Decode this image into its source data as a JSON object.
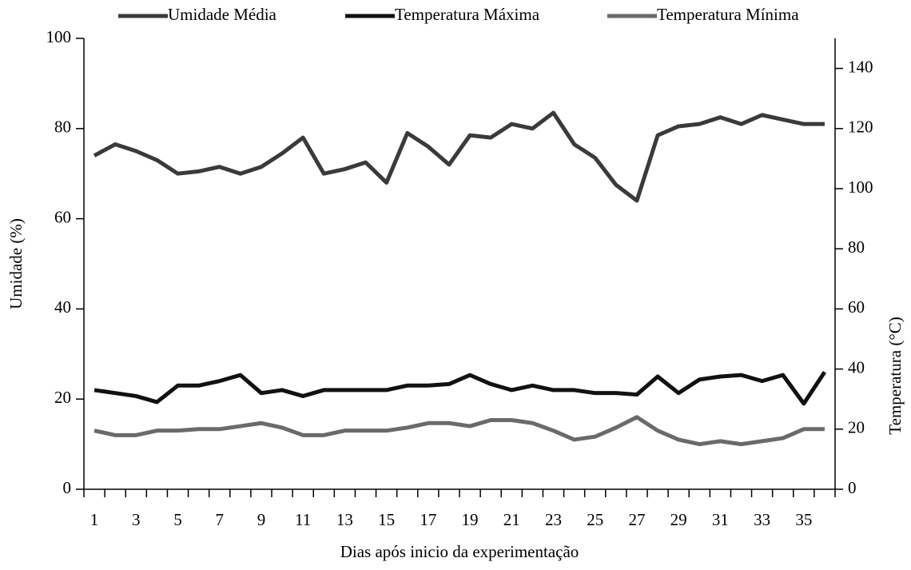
{
  "chart_data": {
    "type": "line",
    "xlabel": "Dias após inicio da experimentação",
    "ylabel": "Umidade (%)",
    "y2label": "Temperatura (°C)",
    "categories": [
      1,
      null,
      3,
      null,
      5,
      null,
      7,
      null,
      9,
      null,
      11,
      null,
      13,
      null,
      15,
      null,
      17,
      null,
      19,
      null,
      21,
      null,
      23,
      null,
      25,
      null,
      27,
      null,
      29,
      null,
      31,
      null,
      33,
      null,
      35,
      null
    ],
    "ylim": [
      0,
      100
    ],
    "yticks": [
      0,
      20,
      40,
      60,
      80,
      100
    ],
    "y2lim": [
      0,
      150
    ],
    "y2ticks": [
      0,
      20,
      40,
      60,
      80,
      100,
      120,
      140
    ],
    "legend": "top",
    "series": [
      {
        "name": "Umidade Média",
        "color": "#3a3a3a",
        "values": [
          74,
          76.5,
          75,
          73,
          70,
          70.5,
          71.5,
          70,
          71.5,
          74.5,
          78,
          70,
          71,
          72.5,
          68,
          79,
          76,
          72,
          78.5,
          78,
          81,
          80,
          83.5,
          76.5,
          73.5,
          67.5,
          64,
          78.5,
          80.5,
          81,
          82.5,
          81,
          83,
          82,
          81,
          81
        ]
      },
      {
        "name": "Temperatura Máxima",
        "color": "#111111",
        "axis": "y2",
        "values": [
          33,
          32,
          31,
          29,
          34.5,
          34.5,
          36,
          38,
          32,
          33,
          31,
          33,
          33,
          33,
          33,
          34.5,
          34.5,
          35,
          38,
          35,
          33,
          34.5,
          33,
          33,
          32,
          32,
          31.5,
          37.5,
          32,
          36.5,
          37.5,
          38,
          36,
          38,
          28.5,
          39
        ]
      },
      {
        "name": "Temperatura Mínima",
        "color": "#6a6a6a",
        "axis": "y2",
        "values": [
          19.5,
          18,
          18,
          19.5,
          19.5,
          20,
          20,
          21,
          22,
          20.5,
          18,
          18,
          19.5,
          19.5,
          19.5,
          20.5,
          22,
          22,
          21,
          23,
          23,
          22,
          19.5,
          16.5,
          17.5,
          20.5,
          24,
          19.5,
          16.5,
          15,
          16,
          15,
          16,
          17,
          20,
          20
        ]
      }
    ]
  }
}
